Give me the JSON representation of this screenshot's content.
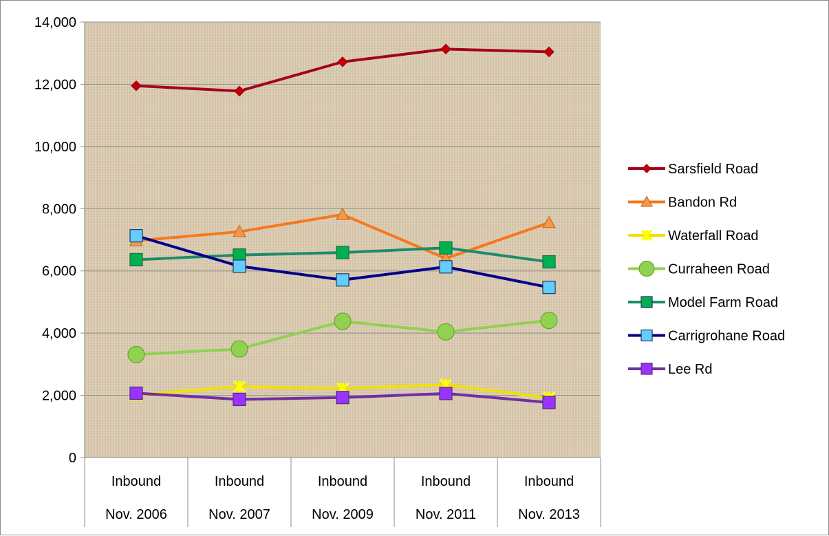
{
  "chart_data": {
    "type": "line",
    "categories": [
      [
        "Inbound",
        "Nov. 2006"
      ],
      [
        "Inbound",
        "Nov. 2007"
      ],
      [
        "Inbound",
        "Nov. 2009"
      ],
      [
        "Inbound",
        "Nov. 2011"
      ],
      [
        "Inbound",
        "Nov. 2013"
      ]
    ],
    "ylim": [
      0,
      14000
    ],
    "yticks": [
      0,
      2000,
      4000,
      6000,
      8000,
      10000,
      12000,
      14000
    ],
    "ytick_labels": [
      "0",
      "2,000",
      "4,000",
      "6,000",
      "8,000",
      "10,000",
      "12,000",
      "14,000"
    ],
    "grid": true,
    "legend": "right",
    "series": [
      {
        "name": "Sarsfield Road",
        "color": "#c00000",
        "line_color": "#a50021",
        "marker": "diamond",
        "values": [
          11950,
          11780,
          12720,
          13130,
          13040
        ]
      },
      {
        "name": "Bandon Rd",
        "color": "#f79646",
        "line_color": "#f7771e",
        "marker": "triangle",
        "values": [
          6970,
          7260,
          7810,
          6400,
          7550
        ]
      },
      {
        "name": "Waterfall Road",
        "color": "#ffff00",
        "line_color": "#f2e000",
        "marker": "star",
        "values": [
          2010,
          2280,
          2220,
          2340,
          1920
        ]
      },
      {
        "name": "Curraheen Road",
        "color": "#92d050",
        "line_color": "#92d050",
        "marker": "circle",
        "values": [
          3310,
          3490,
          4380,
          4040,
          4410
        ]
      },
      {
        "name": "Model Farm Road",
        "color": "#00b050",
        "line_color": "#1f8a6b",
        "marker": "square",
        "values": [
          6360,
          6510,
          6590,
          6740,
          6290
        ]
      },
      {
        "name": "Carrigrohane Road",
        "color": "#66ccff",
        "line_color": "#00008b",
        "marker": "square",
        "values": [
          7130,
          6150,
          5710,
          6130,
          5470
        ]
      },
      {
        "name": "Lee Rd",
        "color": "#9933ff",
        "line_color": "#7030a0",
        "marker": "square",
        "values": [
          2070,
          1870,
          1930,
          2060,
          1770
        ]
      }
    ]
  }
}
